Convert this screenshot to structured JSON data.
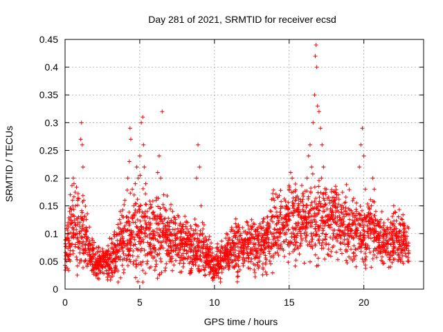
{
  "chart_data": {
    "type": "scatter",
    "title": "Day 281 of 2021, SRMTID for receiver ecsd",
    "xlabel": "GPS time / hours",
    "ylabel": "SRMTID / TECUs",
    "xlim": [
      0,
      24.0
    ],
    "ylim": [
      0,
      0.45
    ],
    "xticks": [
      0,
      5,
      10,
      15,
      20
    ],
    "xtick_labels": [
      "0",
      "5",
      "10",
      "15",
      "20"
    ],
    "yticks": [
      0,
      0.05,
      0.1,
      0.15,
      0.2,
      0.25,
      0.3,
      0.35,
      0.4,
      0.45
    ],
    "ytick_labels": [
      "0",
      "0.05",
      "0.1",
      "0.15",
      "0.2",
      "0.25",
      "0.3",
      "0.35",
      "0.4",
      "0.45"
    ],
    "grid": true,
    "marker": "+",
    "color": "#ff0000",
    "series": [
      {
        "name": "SRMTID",
        "points": [
          [
            0.05,
            0.06
          ],
          [
            0.1,
            0.05
          ],
          [
            0.15,
            0.09
          ],
          [
            0.2,
            0.12
          ],
          [
            0.25,
            0.1
          ],
          [
            0.3,
            0.14
          ],
          [
            0.35,
            0.17
          ],
          [
            0.4,
            0.13
          ],
          [
            0.45,
            0.08
          ],
          [
            0.5,
            0.16
          ],
          [
            0.55,
            0.2
          ],
          [
            0.6,
            0.19
          ],
          [
            0.65,
            0.12
          ],
          [
            0.7,
            0.15
          ],
          [
            0.8,
            0.1
          ],
          [
            0.9,
            0.13
          ],
          [
            1.0,
            0.12
          ],
          [
            1.05,
            0.27
          ],
          [
            1.1,
            0.3
          ],
          [
            1.15,
            0.26
          ],
          [
            1.2,
            0.22
          ],
          [
            1.25,
            0.16
          ],
          [
            1.3,
            0.13
          ],
          [
            1.4,
            0.11
          ],
          [
            1.5,
            0.09
          ],
          [
            1.6,
            0.07
          ],
          [
            1.7,
            0.06
          ],
          [
            1.8,
            0.05
          ],
          [
            1.9,
            0.04
          ],
          [
            2.0,
            0.03
          ],
          [
            2.1,
            0.05
          ],
          [
            2.2,
            0.04
          ],
          [
            2.3,
            0.06
          ],
          [
            2.4,
            0.05
          ],
          [
            2.5,
            0.03
          ],
          [
            2.6,
            0.06
          ],
          [
            2.7,
            0.04
          ],
          [
            2.8,
            0.05
          ],
          [
            2.9,
            0.07
          ],
          [
            3.0,
            0.04
          ],
          [
            3.1,
            0.06
          ],
          [
            3.2,
            0.05
          ],
          [
            3.3,
            0.03
          ],
          [
            3.4,
            0.05
          ],
          [
            3.5,
            0.08
          ],
          [
            3.6,
            0.11
          ],
          [
            3.7,
            0.14
          ],
          [
            3.8,
            0.1
          ],
          [
            3.9,
            0.13
          ],
          [
            4.0,
            0.16
          ],
          [
            4.1,
            0.12
          ],
          [
            4.2,
            0.2
          ],
          [
            4.3,
            0.23
          ],
          [
            4.35,
            0.29
          ],
          [
            4.4,
            0.27
          ],
          [
            4.5,
            0.18
          ],
          [
            4.6,
            0.15
          ],
          [
            4.7,
            0.19
          ],
          [
            4.8,
            0.22
          ],
          [
            4.9,
            0.2
          ],
          [
            5.0,
            0.24
          ],
          [
            5.1,
            0.3
          ],
          [
            5.2,
            0.31
          ],
          [
            5.25,
            0.26
          ],
          [
            5.3,
            0.22
          ],
          [
            5.4,
            0.19
          ],
          [
            5.5,
            0.14
          ],
          [
            5.6,
            0.12
          ],
          [
            5.7,
            0.08
          ],
          [
            5.8,
            0.06
          ],
          [
            5.9,
            0.1
          ],
          [
            6.0,
            0.13
          ],
          [
            6.1,
            0.16
          ],
          [
            6.2,
            0.21
          ],
          [
            6.3,
            0.24
          ],
          [
            6.4,
            0.2
          ],
          [
            6.5,
            0.32
          ],
          [
            6.6,
            0.17
          ],
          [
            6.7,
            0.11
          ],
          [
            6.8,
            0.09
          ],
          [
            6.9,
            0.07
          ],
          [
            7.0,
            0.05
          ],
          [
            7.1,
            0.1
          ],
          [
            7.2,
            0.14
          ],
          [
            7.3,
            0.12
          ],
          [
            7.4,
            0.08
          ],
          [
            7.5,
            0.1
          ],
          [
            7.6,
            0.13
          ],
          [
            7.7,
            0.09
          ],
          [
            7.8,
            0.06
          ],
          [
            7.9,
            0.04
          ],
          [
            8.0,
            0.07
          ],
          [
            8.1,
            0.1
          ],
          [
            8.2,
            0.12
          ],
          [
            8.3,
            0.09
          ],
          [
            8.4,
            0.07
          ],
          [
            8.5,
            0.05
          ],
          [
            8.6,
            0.06
          ],
          [
            8.7,
            0.1
          ],
          [
            8.8,
            0.2
          ],
          [
            8.9,
            0.26
          ],
          [
            9.0,
            0.22
          ],
          [
            9.1,
            0.15
          ],
          [
            9.2,
            0.12
          ],
          [
            9.3,
            0.08
          ],
          [
            9.4,
            0.06
          ],
          [
            9.5,
            0.05
          ],
          [
            9.6,
            0.04
          ],
          [
            9.7,
            0.03
          ],
          [
            9.8,
            0.05
          ],
          [
            9.9,
            0.04
          ],
          [
            10.0,
            0.02
          ],
          [
            10.1,
            0.03
          ],
          [
            10.2,
            0.05
          ],
          [
            10.3,
            0.04
          ],
          [
            10.4,
            0.06
          ],
          [
            10.5,
            0.03
          ],
          [
            10.6,
            0.05
          ],
          [
            10.7,
            0.07
          ],
          [
            10.8,
            0.1
          ],
          [
            10.9,
            0.06
          ],
          [
            11.0,
            0.04
          ],
          [
            11.2,
            0.05
          ],
          [
            11.4,
            0.07
          ],
          [
            11.6,
            0.06
          ],
          [
            11.8,
            0.09
          ],
          [
            12.0,
            0.08
          ],
          [
            12.2,
            0.12
          ],
          [
            12.4,
            0.1
          ],
          [
            12.6,
            0.07
          ],
          [
            12.8,
            0.06
          ],
          [
            13.0,
            0.08
          ],
          [
            13.2,
            0.07
          ],
          [
            13.4,
            0.09
          ],
          [
            13.6,
            0.11
          ],
          [
            13.8,
            0.14
          ],
          [
            14.0,
            0.16
          ],
          [
            14.2,
            0.13
          ],
          [
            14.4,
            0.1
          ],
          [
            14.6,
            0.12
          ],
          [
            14.8,
            0.15
          ],
          [
            15.0,
            0.18
          ],
          [
            15.1,
            0.21
          ],
          [
            15.2,
            0.2
          ],
          [
            15.4,
            0.16
          ],
          [
            15.6,
            0.12
          ],
          [
            15.8,
            0.1
          ],
          [
            16.0,
            0.14
          ],
          [
            16.2,
            0.2
          ],
          [
            16.3,
            0.24
          ],
          [
            16.4,
            0.26
          ],
          [
            16.5,
            0.22
          ],
          [
            16.6,
            0.3
          ],
          [
            16.7,
            0.35
          ],
          [
            16.75,
            0.42
          ],
          [
            16.8,
            0.44
          ],
          [
            16.85,
            0.4
          ],
          [
            16.9,
            0.33
          ],
          [
            17.0,
            0.32
          ],
          [
            17.1,
            0.29
          ],
          [
            17.2,
            0.26
          ],
          [
            17.3,
            0.22
          ],
          [
            17.5,
            0.18
          ],
          [
            17.7,
            0.16
          ],
          [
            17.9,
            0.15
          ],
          [
            18.1,
            0.13
          ],
          [
            18.3,
            0.17
          ],
          [
            18.5,
            0.12
          ],
          [
            18.7,
            0.1
          ],
          [
            18.9,
            0.09
          ],
          [
            19.1,
            0.1
          ],
          [
            19.3,
            0.12
          ],
          [
            19.5,
            0.14
          ],
          [
            19.7,
            0.22
          ],
          [
            19.8,
            0.26
          ],
          [
            19.9,
            0.29
          ],
          [
            20.0,
            0.24
          ],
          [
            20.1,
            0.18
          ],
          [
            20.2,
            0.13
          ],
          [
            20.3,
            0.1
          ],
          [
            20.5,
            0.15
          ],
          [
            20.6,
            0.2
          ],
          [
            20.7,
            0.18
          ],
          [
            20.8,
            0.14
          ],
          [
            21.0,
            0.12
          ],
          [
            21.2,
            0.08
          ],
          [
            21.4,
            0.07
          ],
          [
            21.6,
            0.1
          ],
          [
            21.8,
            0.12
          ],
          [
            22.0,
            0.15
          ],
          [
            22.2,
            0.1
          ],
          [
            22.4,
            0.08
          ],
          [
            22.6,
            0.06
          ],
          [
            22.8,
            0.09
          ],
          [
            23.0,
            0.05
          ]
        ]
      }
    ],
    "band": {
      "x": [
        0,
        0.5,
        1,
        1.5,
        2,
        2.5,
        3,
        3.5,
        4,
        4.5,
        5,
        5.5,
        6,
        6.5,
        7,
        7.5,
        8,
        8.5,
        9,
        9.5,
        10,
        10.5,
        11,
        11.5,
        12,
        12.5,
        13,
        13.5,
        14,
        14.5,
        15,
        15.5,
        16,
        16.5,
        17,
        17.5,
        18,
        18.5,
        19,
        19.5,
        20,
        20.5,
        21,
        21.5,
        22,
        22.5,
        23
      ],
      "mean": [
        0.07,
        0.11,
        0.1,
        0.08,
        0.05,
        0.045,
        0.05,
        0.07,
        0.09,
        0.1,
        0.11,
        0.1,
        0.1,
        0.1,
        0.09,
        0.09,
        0.08,
        0.07,
        0.08,
        0.06,
        0.045,
        0.05,
        0.06,
        0.07,
        0.08,
        0.08,
        0.08,
        0.09,
        0.11,
        0.12,
        0.13,
        0.12,
        0.12,
        0.12,
        0.12,
        0.13,
        0.13,
        0.12,
        0.11,
        0.1,
        0.1,
        0.11,
        0.09,
        0.08,
        0.09,
        0.09,
        0.08
      ],
      "spread": [
        0.03,
        0.05,
        0.05,
        0.04,
        0.025,
        0.02,
        0.025,
        0.04,
        0.05,
        0.06,
        0.06,
        0.05,
        0.05,
        0.05,
        0.045,
        0.045,
        0.04,
        0.035,
        0.04,
        0.03,
        0.025,
        0.025,
        0.03,
        0.035,
        0.035,
        0.035,
        0.035,
        0.04,
        0.05,
        0.05,
        0.05,
        0.05,
        0.05,
        0.05,
        0.05,
        0.05,
        0.05,
        0.05,
        0.045,
        0.04,
        0.04,
        0.04,
        0.035,
        0.03,
        0.035,
        0.035,
        0.03
      ]
    }
  }
}
